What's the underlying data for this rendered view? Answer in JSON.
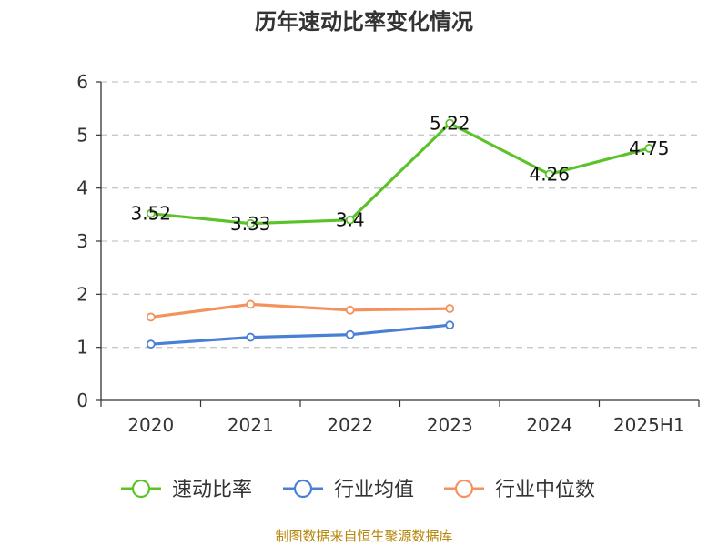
{
  "chart_data": {
    "type": "line",
    "title": "历年速动比率变化情况",
    "categories": [
      "2020",
      "2021",
      "2022",
      "2023",
      "2024",
      "2025H1"
    ],
    "ylim": [
      0,
      6
    ],
    "yticks": [
      0,
      1,
      2,
      3,
      4,
      5,
      6
    ],
    "grid": true,
    "legend_position": "bottom",
    "series": [
      {
        "name": "速动比率",
        "color": "#5cc22a",
        "values": [
          3.52,
          3.33,
          3.4,
          5.22,
          4.26,
          4.75
        ],
        "labels": [
          "3.52",
          "3.33",
          "3.4",
          "5.22",
          "4.26",
          "4.75"
        ]
      },
      {
        "name": "行业均值",
        "color": "#4a7fd6",
        "values": [
          1.06,
          1.19,
          1.24,
          1.42,
          null,
          null
        ]
      },
      {
        "name": "行业中位数",
        "color": "#f4925e",
        "values": [
          1.57,
          1.81,
          1.7,
          1.73,
          null,
          null
        ]
      }
    ],
    "source": "制图数据来自恒生聚源数据库"
  }
}
